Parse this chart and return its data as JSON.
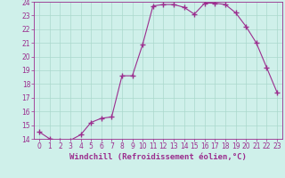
{
  "x": [
    0,
    1,
    2,
    3,
    4,
    5,
    6,
    7,
    8,
    9,
    10,
    11,
    12,
    13,
    14,
    15,
    16,
    17,
    18,
    19,
    20,
    21,
    22,
    23
  ],
  "y": [
    14.5,
    14.0,
    13.9,
    13.9,
    14.3,
    15.2,
    15.5,
    15.6,
    18.6,
    18.6,
    20.9,
    23.7,
    23.8,
    23.8,
    23.6,
    23.1,
    23.9,
    23.9,
    23.8,
    23.2,
    22.2,
    21.0,
    19.2,
    17.4
  ],
  "line_color": "#9b2d8e",
  "marker": "+",
  "marker_color": "#9b2d8e",
  "bg_color": "#cff0ea",
  "grid_color": "#aad8cc",
  "xlabel": "Windchill (Refroidissement éolien,°C)",
  "ylabel": "",
  "ylim": [
    14,
    24
  ],
  "xlim": [
    -0.5,
    23.5
  ],
  "yticks": [
    14,
    15,
    16,
    17,
    18,
    19,
    20,
    21,
    22,
    23,
    24
  ],
  "xticks": [
    0,
    1,
    2,
    3,
    4,
    5,
    6,
    7,
    8,
    9,
    10,
    11,
    12,
    13,
    14,
    15,
    16,
    17,
    18,
    19,
    20,
    21,
    22,
    23
  ],
  "tick_fontsize": 5.5,
  "xlabel_fontsize": 6.5,
  "line_width": 0.8,
  "marker_size": 4
}
